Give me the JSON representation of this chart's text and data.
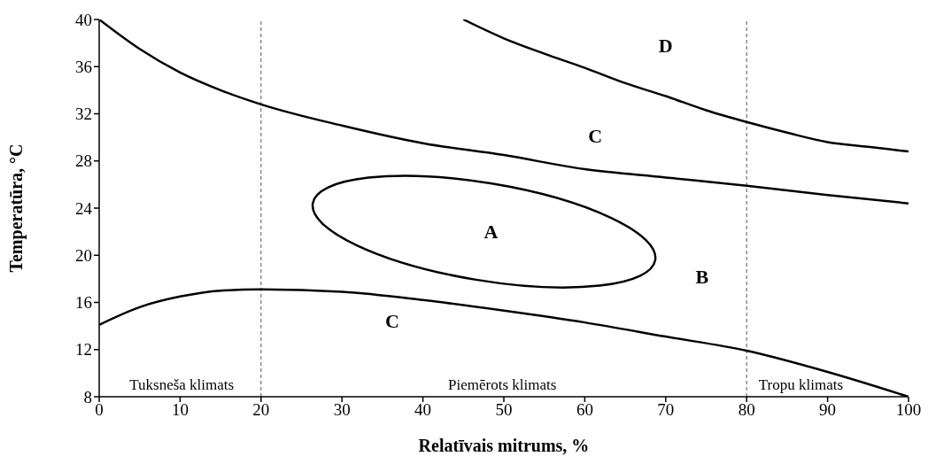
{
  "chart_data": {
    "type": "line",
    "xlabel": "Relatīvais mitrums, %",
    "ylabel": "Temperatūra, °C",
    "xlim": [
      0,
      100
    ],
    "xticks": [
      0,
      10,
      20,
      30,
      40,
      50,
      60,
      70,
      80,
      90,
      100
    ],
    "ylim": [
      8,
      40
    ],
    "yticks": [
      8,
      12,
      16,
      20,
      24,
      28,
      32,
      36,
      40
    ],
    "marker": "none",
    "line_style": "solid",
    "series": [
      {
        "color": "#000000",
        "x": [
          45,
          50,
          55,
          60,
          65,
          70,
          75,
          80,
          85,
          90,
          95,
          100
        ],
        "values": [
          40,
          38.4,
          37.1,
          35.9,
          34.6,
          33.5,
          32.3,
          31.3,
          30.4,
          29.6,
          29.2,
          28.8
        ]
      },
      {
        "color": "#000000",
        "x": [
          0,
          5,
          10,
          15,
          20,
          30,
          40,
          50,
          60,
          70,
          80,
          90,
          100
        ],
        "values": [
          40,
          37.5,
          35.5,
          34,
          32.8,
          31,
          29.5,
          28.5,
          27.3,
          26.6,
          25.9,
          25.1,
          24.4
        ]
      },
      {
        "color": "#000000",
        "x": [
          0,
          5,
          10,
          15,
          20,
          30,
          40,
          50,
          60,
          70,
          80,
          90,
          100
        ],
        "values": [
          14.1,
          15.6,
          16.5,
          17,
          17.1,
          16.9,
          16.2,
          15.3,
          14.3,
          13.1,
          11.9,
          10.1,
          8
        ]
      }
    ],
    "ref_lines": [
      {
        "axis": "x",
        "value": 20,
        "color": "#555555",
        "line_style": "dashed"
      },
      {
        "axis": "x",
        "value": 80,
        "color": "#555555",
        "line_style": "dashed"
      }
    ],
    "annotations": [
      "D",
      "C",
      "A",
      "B",
      "C",
      "Tuksneša klimats",
      "Piemērots klimats",
      "Tropu klimats"
    ]
  }
}
